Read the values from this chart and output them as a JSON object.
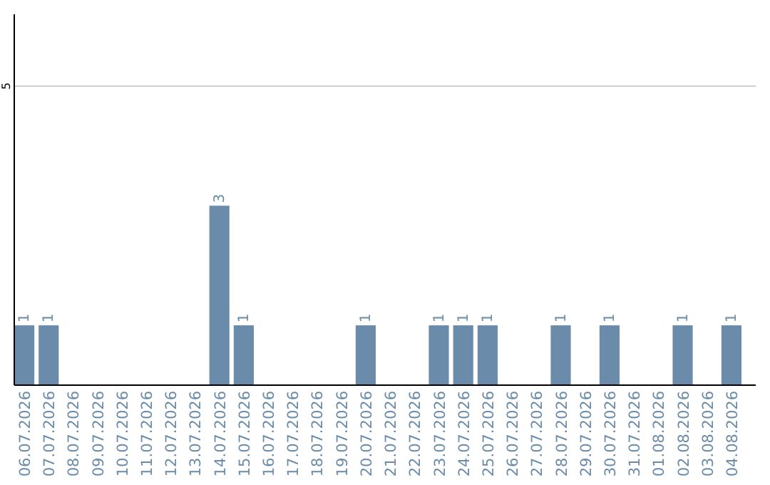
{
  "chart_data": {
    "type": "bar",
    "categories": [
      "06.07.2026",
      "07.07.2026",
      "08.07.2026",
      "09.07.2026",
      "10.07.2026",
      "11.07.2026",
      "12.07.2026",
      "13.07.2026",
      "14.07.2026",
      "15.07.2026",
      "16.07.2026",
      "17.07.2026",
      "18.07.2026",
      "19.07.2026",
      "20.07.2026",
      "21.07.2026",
      "22.07.2026",
      "23.07.2026",
      "24.07.2026",
      "25.07.2026",
      "26.07.2026",
      "27.07.2026",
      "28.07.2026",
      "29.07.2026",
      "30.07.2026",
      "31.07.2026",
      "01.08.2026",
      "02.08.2026",
      "03.08.2026",
      "04.08.2026"
    ],
    "values": [
      1,
      1,
      0,
      0,
      0,
      0,
      0,
      0,
      3,
      1,
      0,
      0,
      0,
      0,
      1,
      0,
      0,
      1,
      1,
      1,
      0,
      0,
      1,
      0,
      1,
      0,
      0,
      1,
      0,
      1
    ],
    "value_labels": [
      "1",
      "1",
      null,
      null,
      null,
      null,
      null,
      null,
      "3",
      "1",
      null,
      null,
      null,
      null,
      "1",
      null,
      null,
      "1",
      "1",
      "1",
      null,
      null,
      "1",
      null,
      "1",
      null,
      null,
      "1",
      null,
      "1"
    ],
    "color": "#6a8caa",
    "ylim": [
      0,
      6.2
    ],
    "yticks": [
      5
    ],
    "grid": "y"
  }
}
